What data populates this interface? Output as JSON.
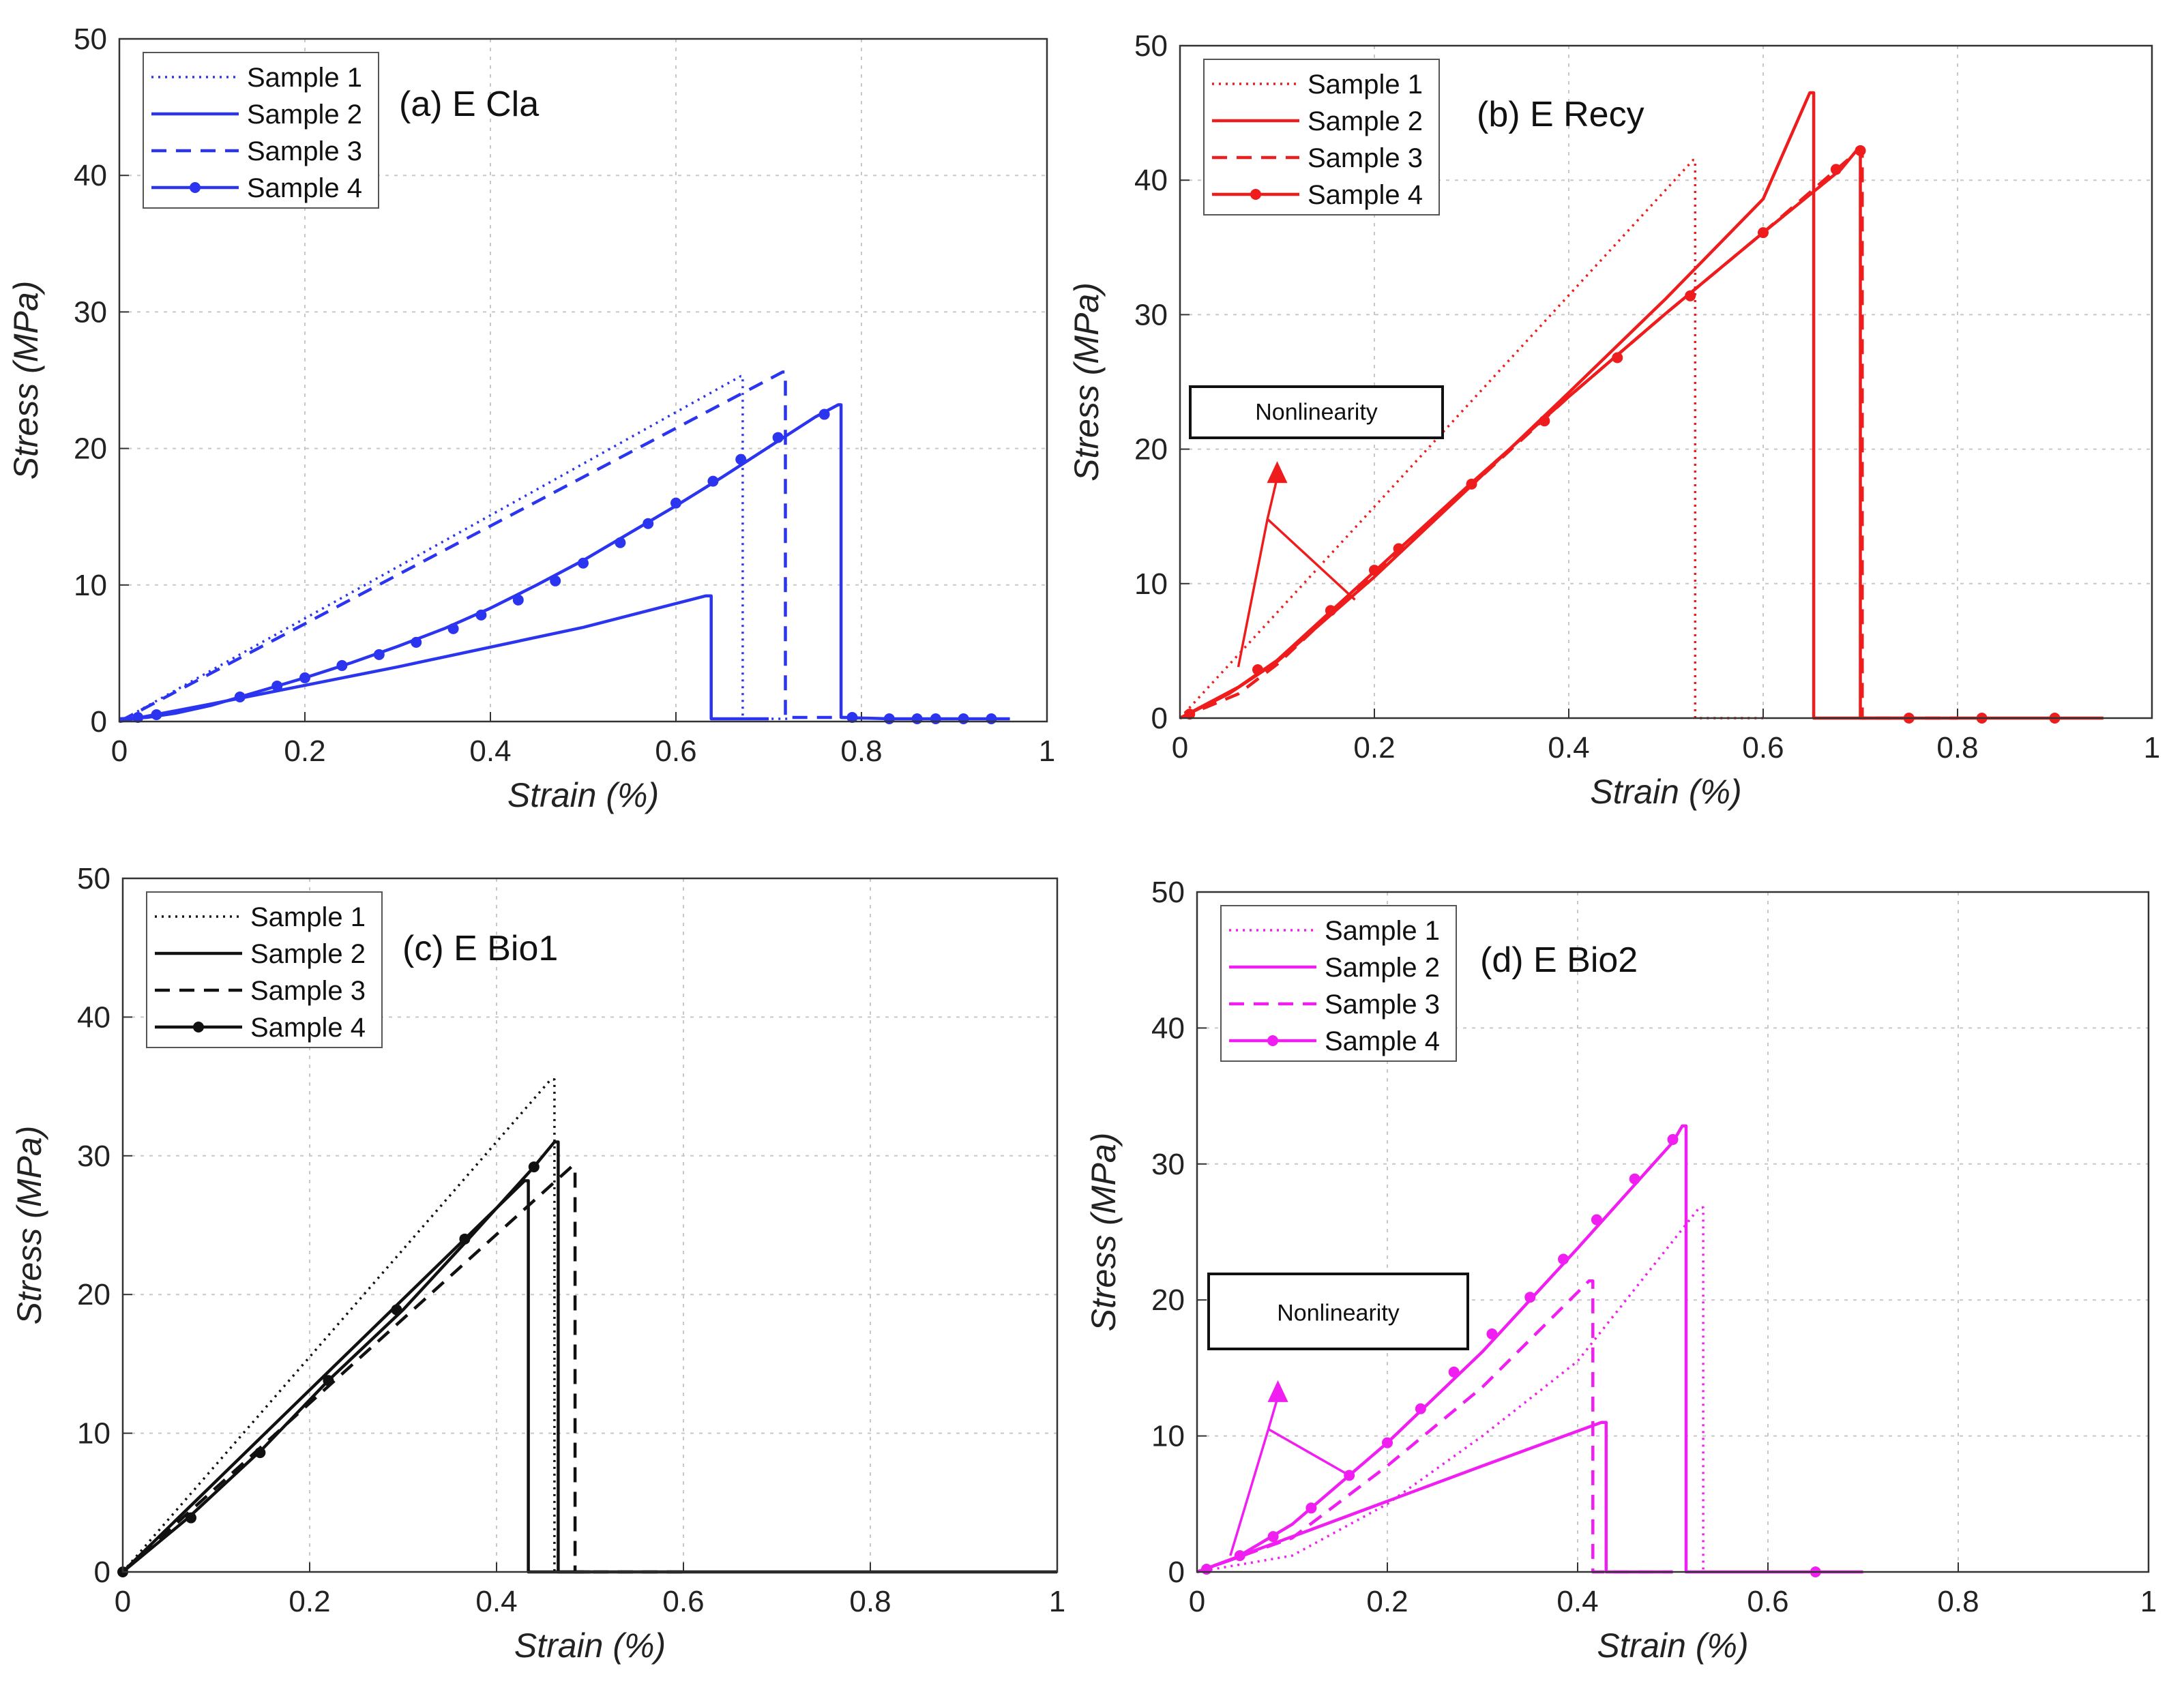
{
  "chart_data": [
    {
      "type": "line",
      "title": "(a) E Cla",
      "xlabel": "Strain (%)",
      "ylabel": "Stress (MPa)",
      "xlim": [
        0,
        1
      ],
      "ylim": [
        0,
        50
      ],
      "xticks": [
        "0",
        "0.2",
        "0.4",
        "0.6",
        "0.8",
        "1"
      ],
      "yticks": [
        "0",
        "10",
        "20",
        "30",
        "40",
        "50"
      ],
      "grid": true,
      "legend_position": "top-left",
      "color": "#2b35f0",
      "series": [
        {
          "name": "Sample 1",
          "style": "dotted",
          "x": [
            0,
            0.67,
            0.672,
            0.672,
            0.72
          ],
          "y": [
            0,
            25.3,
            25.3,
            0.2,
            0.2
          ]
        },
        {
          "name": "Sample 2",
          "style": "solid",
          "x": [
            0,
            0.1,
            0.3,
            0.5,
            0.632,
            0.638,
            0.638,
            0.7
          ],
          "y": [
            0,
            1.3,
            4,
            6.9,
            9.2,
            9.2,
            0.2,
            0.2
          ]
        },
        {
          "name": "Sample 3",
          "style": "dashed",
          "x": [
            0,
            0.715,
            0.718,
            0.718,
            0.8
          ],
          "y": [
            0,
            25.6,
            25.6,
            0.3,
            0.3
          ]
        },
        {
          "name": "Sample 4",
          "style": "marker",
          "x": [
            0,
            0.03,
            0.06,
            0.1,
            0.15,
            0.2,
            0.25,
            0.3,
            0.35,
            0.4,
            0.45,
            0.5,
            0.55,
            0.6,
            0.65,
            0.7,
            0.75,
            0.775,
            0.778,
            0.778,
            0.83,
            0.88,
            0.93,
            0.96
          ],
          "y": [
            0.2,
            0.3,
            0.6,
            1.2,
            2.2,
            3.2,
            4.3,
            5.5,
            6.8,
            8.3,
            10,
            11.8,
            13.8,
            15.8,
            17.9,
            20.1,
            22.3,
            23.2,
            23.2,
            0.3,
            0.2,
            0.2,
            0.2,
            0.2
          ],
          "markers_x": [
            0.02,
            0.04,
            0.13,
            0.17,
            0.2,
            0.24,
            0.28,
            0.32,
            0.36,
            0.39,
            0.43,
            0.47,
            0.5,
            0.54,
            0.57,
            0.6,
            0.64,
            0.67,
            0.71,
            0.76,
            0.79,
            0.83,
            0.86,
            0.88,
            0.91,
            0.94
          ],
          "markers_y": [
            0.3,
            0.5,
            1.8,
            2.6,
            3.2,
            4.1,
            4.9,
            5.8,
            6.8,
            7.8,
            8.9,
            10.3,
            11.6,
            13.1,
            14.5,
            16,
            17.6,
            19.2,
            20.8,
            22.5,
            0.3,
            0.2,
            0.2,
            0.2,
            0.2,
            0.2
          ]
        }
      ]
    },
    {
      "type": "line",
      "title": "(b) E Recy",
      "xlabel": "Strain (%)",
      "ylabel": "Stress (MPa)",
      "xlim": [
        0,
        1
      ],
      "ylim": [
        0,
        50
      ],
      "xticks": [
        "0",
        "0.2",
        "0.4",
        "0.6",
        "0.8",
        "1"
      ],
      "yticks": [
        "0",
        "10",
        "20",
        "30",
        "40",
        "50"
      ],
      "grid": true,
      "legend_position": "top-left",
      "color": "#ee1c1c",
      "annotation": {
        "text": "Nonlinearity",
        "arrow_tip": [
          0.1,
          18.8
        ],
        "arrow_base": [
          0.09,
          14.8
        ],
        "line_ends": [
          [
            0.06,
            3.8
          ],
          [
            0.18,
            8.8
          ]
        ]
      },
      "series": [
        {
          "name": "Sample 1",
          "style": "dotted",
          "x": [
            0,
            0.528,
            0.53,
            0.53,
            0.6
          ],
          "y": [
            0,
            41.5,
            41.5,
            0,
            0
          ]
        },
        {
          "name": "Sample 2",
          "style": "solid",
          "x": [
            0,
            0.05,
            0.1,
            0.2,
            0.3,
            0.4,
            0.5,
            0.6,
            0.648,
            0.652,
            0.652,
            0.75
          ],
          "y": [
            0,
            1.8,
            4.2,
            10.5,
            17.3,
            24.2,
            31.2,
            38.6,
            46.5,
            46.5,
            0,
            0
          ]
        },
        {
          "name": "Sample 3",
          "style": "dashed",
          "x": [
            0,
            0.06,
            0.1,
            0.2,
            0.3,
            0.4,
            0.5,
            0.6,
            0.698,
            0.702,
            0.702,
            0.8
          ],
          "y": [
            0,
            1.8,
            4,
            10.8,
            17.3,
            23.9,
            30.1,
            36.1,
            42.2,
            42.2,
            0,
            0
          ]
        },
        {
          "name": "Sample 4",
          "style": "marker",
          "x": [
            0,
            0.06,
            0.1,
            0.2,
            0.3,
            0.4,
            0.5,
            0.6,
            0.68,
            0.696,
            0.7,
            0.7,
            0.8,
            0.9,
            0.95
          ],
          "y": [
            0,
            2.3,
            4.3,
            10.9,
            17.5,
            23.9,
            30.1,
            36.1,
            40.8,
            42.2,
            42.2,
            0,
            0,
            0,
            0
          ],
          "markers_x": [
            0.01,
            0.08,
            0.155,
            0.2,
            0.225,
            0.3,
            0.375,
            0.45,
            0.525,
            0.6,
            0.675,
            0.7,
            0.75,
            0.825,
            0.9
          ],
          "markers_y": [
            0.3,
            3.6,
            8,
            11,
            12.6,
            17.4,
            22.1,
            26.8,
            31.4,
            36.1,
            40.8,
            42.2,
            0,
            0,
            0
          ]
        }
      ]
    },
    {
      "type": "line",
      "title": "(c) E Bio1",
      "xlabel": "Strain (%)",
      "ylabel": "Stress (MPa)",
      "xlim": [
        0,
        1
      ],
      "ylim": [
        0,
        50
      ],
      "xticks": [
        "0",
        "0.2",
        "0.4",
        "0.6",
        "0.8",
        "1"
      ],
      "yticks": [
        "0",
        "10",
        "20",
        "30",
        "40",
        "50"
      ],
      "grid": true,
      "legend_position": "top-left",
      "color": "#111111",
      "series": [
        {
          "name": "Sample 1",
          "style": "dotted",
          "x": [
            0,
            0.458,
            0.462,
            0.462,
            0.55
          ],
          "y": [
            0,
            35.5,
            35.5,
            0,
            0
          ]
        },
        {
          "name": "Sample 2",
          "style": "solid",
          "x": [
            0,
            0.43,
            0.434,
            0.434,
            0.5
          ],
          "y": [
            0,
            28.2,
            28.2,
            0,
            0
          ]
        },
        {
          "name": "Sample 3",
          "style": "dashed",
          "x": [
            0,
            0.48,
            0.484,
            0.484,
            0.6
          ],
          "y": [
            0,
            29.2,
            29.2,
            0,
            0
          ]
        },
        {
          "name": "Sample 4",
          "style": "marker",
          "x": [
            0,
            0.07,
            0.15,
            0.22,
            0.3,
            0.37,
            0.44,
            0.462,
            0.466,
            0.466,
            0.6,
            0.8,
            1.0
          ],
          "y": [
            0,
            3.9,
            8.9,
            13.8,
            18.9,
            24,
            29.2,
            31,
            31,
            0,
            0,
            0,
            0
          ],
          "markers_x": [
            0,
            0.073,
            0.147,
            0.22,
            0.293,
            0.366,
            0.44
          ],
          "markers_y": [
            0,
            3.9,
            8.6,
            13.8,
            18.9,
            24,
            29.2
          ]
        }
      ]
    },
    {
      "type": "line",
      "title": "(d) E Bio2",
      "xlabel": "Strain (%)",
      "ylabel": "Stress (MPa)",
      "xlim": [
        0,
        1
      ],
      "ylim": [
        0,
        50
      ],
      "xticks": [
        "0",
        "0.2",
        "0.4",
        "0.6",
        "0.8",
        "1"
      ],
      "yticks": [
        "0",
        "10",
        "20",
        "30",
        "40",
        "50"
      ],
      "grid": true,
      "legend_position": "top-left",
      "color": "#f01ef0",
      "annotation": {
        "text": "Nonlinearity",
        "arrow_tip": [
          0.085,
          13.8
        ],
        "arrow_base": [
          0.075,
          10.5
        ],
        "line_ends": [
          [
            0.035,
            1.2
          ],
          [
            0.16,
            7.1
          ]
        ]
      },
      "series": [
        {
          "name": "Sample 1",
          "style": "dotted",
          "x": [
            0,
            0.1,
            0.2,
            0.3,
            0.4,
            0.528,
            0.532,
            0.532,
            0.62
          ],
          "y": [
            0,
            1.2,
            5,
            10,
            15.5,
            26.8,
            26.8,
            0,
            0
          ]
        },
        {
          "name": "Sample 2",
          "style": "solid",
          "x": [
            0,
            0.1,
            0.2,
            0.3,
            0.425,
            0.43,
            0.43,
            0.5
          ],
          "y": [
            0,
            2.6,
            5.2,
            7.8,
            11,
            11,
            0,
            0
          ]
        },
        {
          "name": "Sample 3",
          "style": "dashed",
          "x": [
            0,
            0.1,
            0.2,
            0.3,
            0.412,
            0.416,
            0.416,
            0.5
          ],
          "y": [
            0,
            2.5,
            7.8,
            13.6,
            21.4,
            21.4,
            0,
            0
          ]
        },
        {
          "name": "Sample 4",
          "style": "marker",
          "x": [
            0,
            0.04,
            0.1,
            0.2,
            0.3,
            0.4,
            0.5,
            0.51,
            0.514,
            0.514,
            0.6,
            0.7
          ],
          "y": [
            0,
            1,
            3.5,
            9.5,
            16.2,
            23.8,
            31.6,
            32.8,
            32.8,
            0,
            0,
            0
          ],
          "markers_x": [
            0.01,
            0.045,
            0.08,
            0.12,
            0.16,
            0.2,
            0.235,
            0.27,
            0.31,
            0.35,
            0.385,
            0.42,
            0.46,
            0.5,
            0.65
          ],
          "markers_y": [
            0.2,
            1.2,
            2.6,
            4.7,
            7.1,
            9.5,
            12,
            14.7,
            17.5,
            20.2,
            23,
            25.9,
            28.9,
            31.8,
            0
          ]
        }
      ]
    }
  ]
}
